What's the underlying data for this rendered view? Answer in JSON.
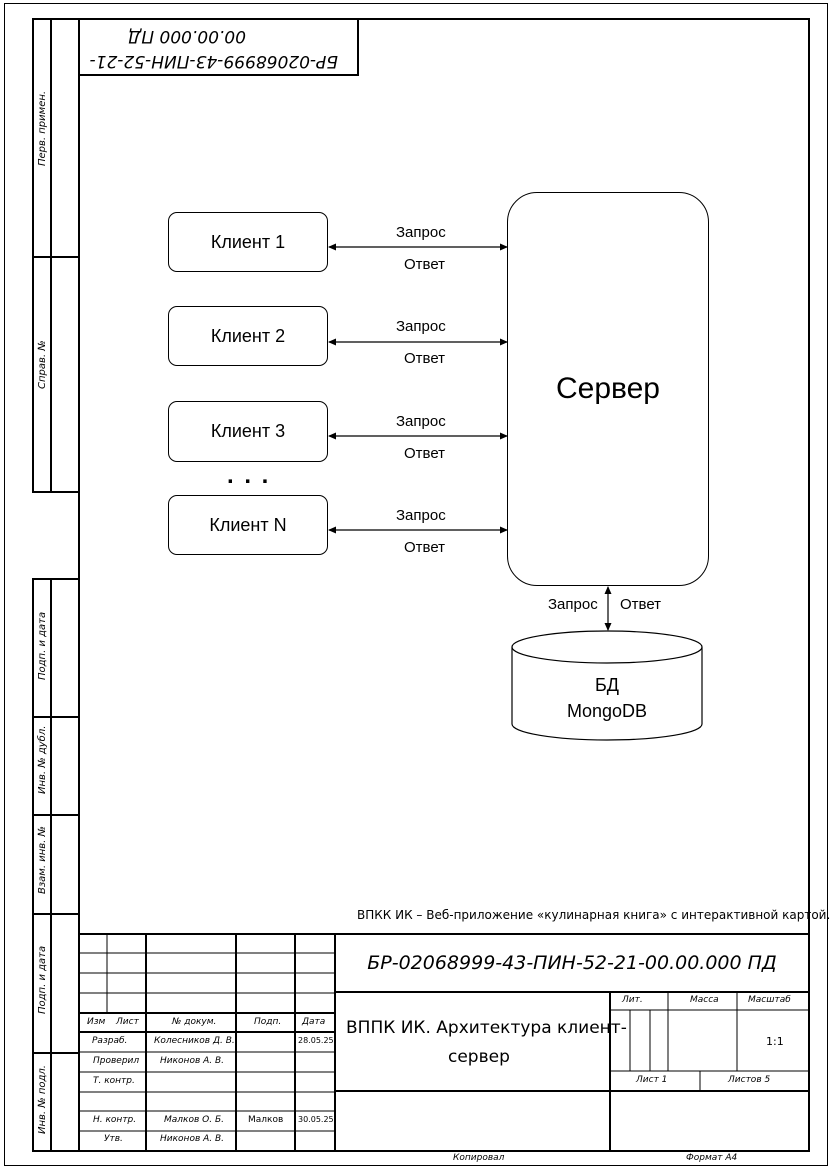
{
  "stamp_top": {
    "line1": "БР-02068999-43-ПИН-52-21-",
    "line2": "00.00.000 ПД"
  },
  "side_labels": {
    "perv_primen": "Перв. примен.",
    "sprav_no": "Справ. №",
    "podp_data_1": "Подп. и дата",
    "inv_dubl": "Инв. № дубл.",
    "vzam_inv": "Взам. инв. №",
    "podp_data_2": "Подп. и дата",
    "inv_podl": "Инв. № подл."
  },
  "diagram": {
    "clients": [
      "Клиент 1",
      "Клиент 2",
      "Клиент 3",
      "Клиент N"
    ],
    "ellipsis": ". . .",
    "request_label": "Запрос",
    "response_label": "Ответ",
    "server": "Сервер",
    "db_line1": "БД",
    "db_line2": "MongoDB"
  },
  "caption": "ВПКК ИК – Веб-приложение «кулинарная книга» с интерактивной картой.",
  "title_block": {
    "designation": "БР-02068999-43-ПИН-52-21-00.00.000 ПД",
    "title": "ВППК ИК. Архитектура клиент-сервер",
    "title_line1": "ВППК ИК. Архитектура клиент-",
    "title_line2": "сервер",
    "headers": {
      "izm": "Изм",
      "list": "Лист",
      "dokum": "№ докум.",
      "podp": "Подп.",
      "data": "Дата"
    },
    "rows": [
      {
        "role": "Разраб.",
        "name": "Колесников Д. В.",
        "sign": "",
        "date": "28.05.25"
      },
      {
        "role": "Проверил",
        "name": "Никонов А. В.",
        "sign": "",
        "date": ""
      },
      {
        "role": "Т. контр.",
        "name": "",
        "sign": "",
        "date": ""
      },
      {
        "role": "Н. контр.",
        "name": "Малков О. Б.",
        "sign": "Малков",
        "date": "30.05.25"
      },
      {
        "role": "Утв.",
        "name": "Никонов А. В.",
        "sign": "",
        "date": ""
      }
    ],
    "lit": "Лит.",
    "massa": "Масса",
    "masshtab": "Масштаб",
    "scale": "1:1",
    "sheet": "Лист 1",
    "sheets": "Листов 5"
  },
  "footer": {
    "copied": "Копировал",
    "format": "Формат A4"
  }
}
